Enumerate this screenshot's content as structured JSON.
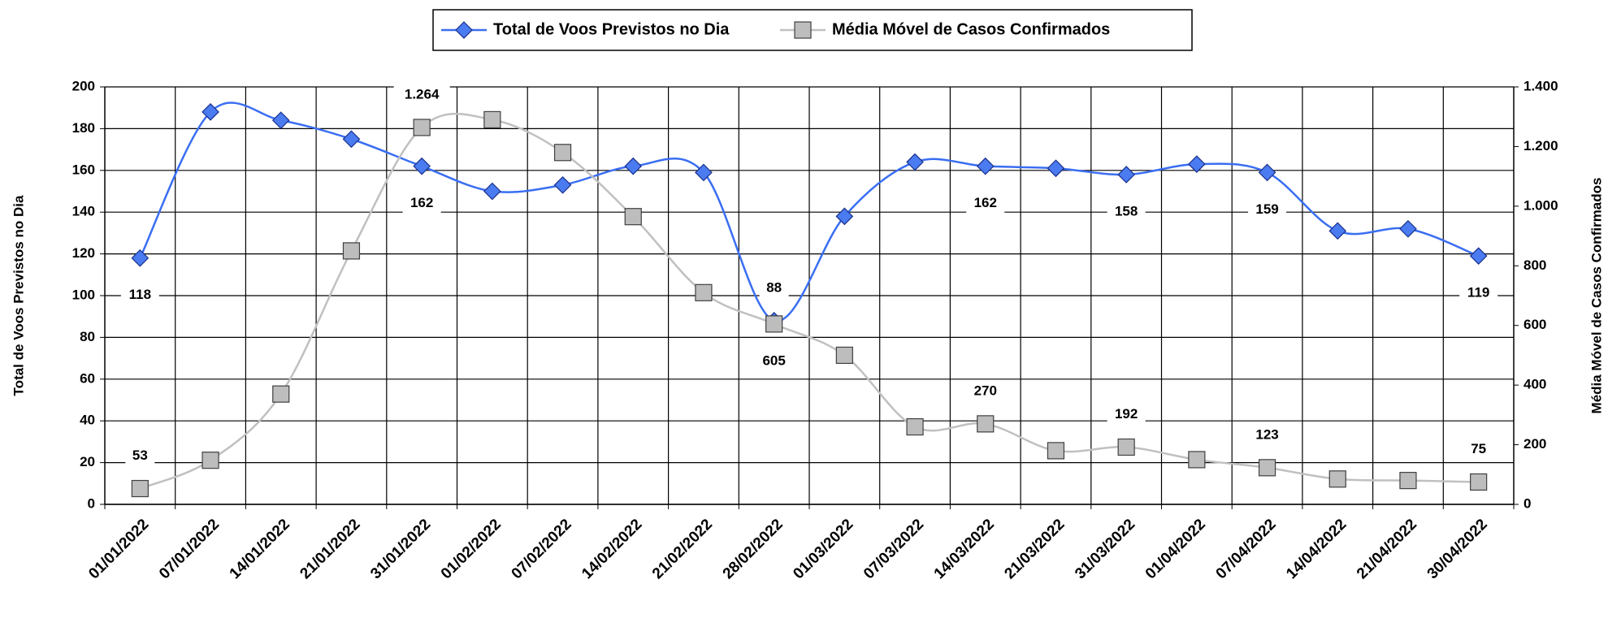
{
  "chart_data": {
    "type": "line",
    "categories": [
      "01/01/2022",
      "07/01/2022",
      "14/01/2022",
      "21/01/2022",
      "31/01/2022",
      "01/02/2022",
      "07/02/2022",
      "14/02/2022",
      "21/02/2022",
      "28/02/2022",
      "01/03/2022",
      "07/03/2022",
      "14/03/2022",
      "21/03/2022",
      "31/03/2022",
      "01/04/2022",
      "07/04/2022",
      "14/04/2022",
      "21/04/2022",
      "30/04/2022"
    ],
    "series": [
      {
        "name": "Total de Voos Previstos no Dia",
        "color": "#3a6ef2",
        "marker": "diamond",
        "values": [
          118,
          188,
          184,
          175,
          162,
          150,
          153,
          162,
          159,
          88,
          138,
          164,
          162,
          161,
          158,
          163,
          159,
          131,
          132,
          119
        ],
        "value_labels": [
          "118",
          null,
          null,
          null,
          "162",
          null,
          null,
          null,
          null,
          "88",
          null,
          null,
          "162",
          null,
          "158",
          null,
          "159",
          null,
          null,
          "119"
        ]
      },
      {
        "name": "Média Móvel de Casos Confirmados",
        "color": "#c0c0c0",
        "marker": "square",
        "axis": "y2",
        "values": [
          53,
          148,
          370,
          850,
          1264,
          1290,
          1180,
          965,
          710,
          605,
          500,
          260,
          270,
          180,
          192,
          150,
          123,
          85,
          80,
          75
        ],
        "value_labels": [
          "53",
          null,
          null,
          null,
          "1.264",
          null,
          null,
          null,
          null,
          "605",
          null,
          null,
          "270",
          null,
          "192",
          null,
          "123",
          null,
          null,
          "75"
        ]
      }
    ],
    "ylabel": "Total de Voos Previstos no Dia",
    "y2label": "Média Móvel de Casos Confirmados",
    "ylim": [
      0,
      200
    ],
    "yticks": [
      0,
      20,
      40,
      60,
      80,
      100,
      120,
      140,
      160,
      180,
      200
    ],
    "y2lim": [
      0,
      1400
    ],
    "y2ticks": [
      0,
      200,
      400,
      600,
      800,
      {
        "value": 1000,
        "label": "1.000"
      },
      {
        "value": 1200,
        "label": "1.200"
      },
      {
        "value": 1400,
        "label": "1.400"
      }
    ],
    "grid": true,
    "smooth": true,
    "legend": "top"
  }
}
